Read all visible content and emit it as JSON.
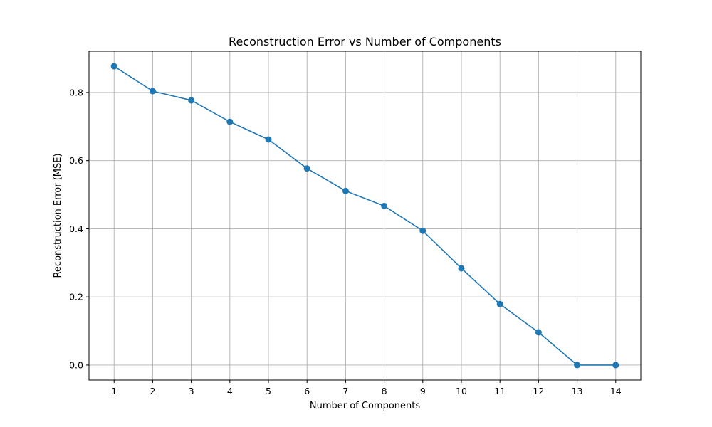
{
  "chart_data": {
    "type": "line",
    "title": "Reconstruction Error vs Number of Components",
    "xlabel": "Number of Components",
    "ylabel": "Reconstruction Error (MSE)",
    "x": [
      1,
      2,
      3,
      4,
      5,
      6,
      7,
      8,
      9,
      10,
      11,
      12,
      13,
      14
    ],
    "series": [
      {
        "values": [
          0.877,
          0.804,
          0.777,
          0.714,
          0.662,
          0.577,
          0.511,
          0.467,
          0.394,
          0.284,
          0.179,
          0.096,
          0.0,
          0.0
        ]
      }
    ],
    "xticks": [
      "1",
      "2",
      "3",
      "4",
      "5",
      "6",
      "7",
      "8",
      "9",
      "10",
      "11",
      "12",
      "13",
      "14"
    ],
    "yticks": [
      "0.0",
      "0.2",
      "0.4",
      "0.6",
      "0.8"
    ],
    "xlim": [
      0.35,
      14.65
    ],
    "ylim": [
      -0.044,
      0.921
    ],
    "grid": true,
    "line_color": "#1f77b4",
    "grid_color": "#b0b0b0",
    "axis_color": "#000000"
  }
}
